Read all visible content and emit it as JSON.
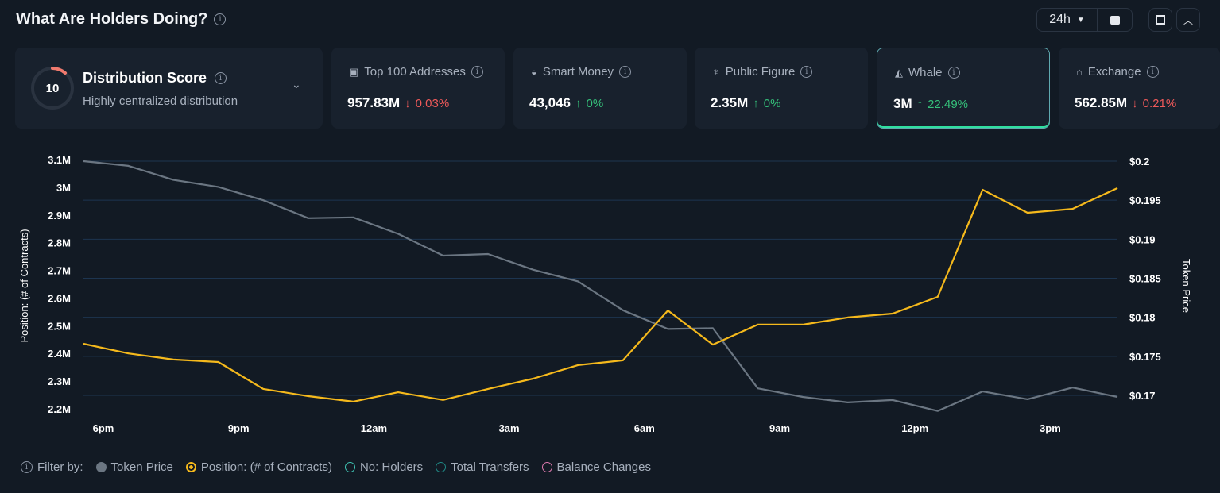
{
  "header": {
    "title": "What Are Holders Doing?",
    "timeframe": "24h"
  },
  "score": {
    "value": "10",
    "title": "Distribution Score",
    "subtitle": "Highly centralized distribution"
  },
  "cards": [
    {
      "label": "Top 100 Addresses",
      "icon": "money-icon",
      "value": "957.83M",
      "change": "0.03%",
      "dir": "down"
    },
    {
      "label": "Smart Money",
      "icon": "sunglasses-icon",
      "value": "43,046",
      "change": "0%",
      "dir": "up"
    },
    {
      "label": "Public Figure",
      "icon": "spotlight-icon",
      "value": "2.35M",
      "change": "0%",
      "dir": "up"
    },
    {
      "label": "Whale",
      "icon": "whale-icon",
      "value": "3M",
      "change": "22.49%",
      "dir": "up",
      "selected": true
    },
    {
      "label": "Exchange",
      "icon": "bank-icon",
      "value": "562.85M",
      "change": "0.21%",
      "dir": "down"
    }
  ],
  "legend": {
    "filter_label": "Filter by:",
    "items": [
      {
        "label": "Token Price",
        "color": "#6b7682",
        "style": "filled"
      },
      {
        "label": "Position: (# of Contracts)",
        "color": "#f5b91c",
        "style": "selected"
      },
      {
        "label": "No: Holders",
        "color": "#3fc4b4",
        "style": "outline"
      },
      {
        "label": "Total Transfers",
        "color": "#1f8a86",
        "style": "outline"
      },
      {
        "label": "Balance Changes",
        "color": "#e07bb0",
        "style": "outline"
      }
    ]
  },
  "chart_data": {
    "type": "line",
    "ylabel": "Position: (# of Contracts)",
    "y2label": "Token Price",
    "x_ticks": [
      "6pm",
      "9pm",
      "12am",
      "3am",
      "6am",
      "9am",
      "12pm",
      "3pm"
    ],
    "y_ticks": [
      "2.2M",
      "2.3M",
      "2.4M",
      "2.5M",
      "2.6M",
      "2.7M",
      "2.8M",
      "2.9M",
      "3M",
      "3.1M"
    ],
    "y2_ticks": [
      "$0.17",
      "$0.175",
      "$0.18",
      "$0.185",
      "$0.19",
      "$0.195",
      "$0.2"
    ],
    "ylim": [
      2.2,
      3.1
    ],
    "y2lim": [
      0.17,
      0.2
    ],
    "x": [
      "5:30pm",
      "6:30pm",
      "7:30pm",
      "8:30pm",
      "9:30pm",
      "10:30pm",
      "11:30pm",
      "12:30am",
      "1:30am",
      "2:30am",
      "3:30am",
      "4:30am",
      "5:30am",
      "6:30am",
      "7:30am",
      "8:30am",
      "9:30am",
      "10:30am",
      "11:30am",
      "12:30pm",
      "1:30pm",
      "2:30pm",
      "3:30pm",
      "4:30pm"
    ],
    "series": [
      {
        "name": "Token Price",
        "axis": "right",
        "color": "#6b7682",
        "values": [
          0.2,
          0.1994,
          0.1976,
          0.1967,
          0.195,
          0.1927,
          0.1928,
          0.1907,
          0.1879,
          0.1881,
          0.1861,
          0.1846,
          0.1809,
          0.1785,
          0.1786,
          0.1709,
          0.1698,
          0.1691,
          0.1694,
          0.168,
          0.1705,
          0.1695,
          0.171,
          0.1698
        ]
      },
      {
        "name": "Position: (# of Contracts)",
        "axis": "left",
        "color": "#f5b91c",
        "values": [
          2.435,
          2.4,
          2.378,
          2.369,
          2.272,
          2.246,
          2.226,
          2.26,
          2.232,
          2.272,
          2.309,
          2.358,
          2.375,
          2.555,
          2.432,
          2.504,
          2.504,
          2.53,
          2.544,
          2.604,
          2.991,
          2.908,
          2.922,
          2.997
        ]
      }
    ]
  }
}
